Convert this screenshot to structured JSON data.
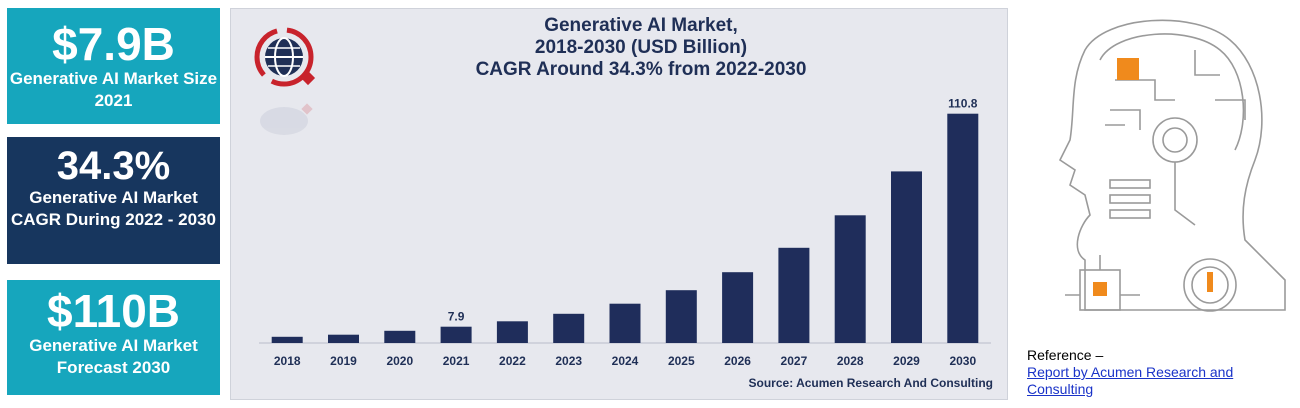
{
  "stats": [
    {
      "value": "$7.9B",
      "label": "Generative AI Market Size 2021"
    },
    {
      "value": "34.3%",
      "label": "Generative AI Market CAGR During 2022 - 2030"
    },
    {
      "value": "$110B",
      "label": "Generative AI Market Forecast 2030"
    }
  ],
  "chart_data": {
    "type": "bar",
    "title_lines": [
      "Generative AI Market,",
      "2018-2030 (USD Billion)",
      "CAGR Around 34.3% from 2022-2030"
    ],
    "categories": [
      "2018",
      "2019",
      "2020",
      "2021",
      "2022",
      "2023",
      "2024",
      "2025",
      "2026",
      "2027",
      "2028",
      "2029",
      "2030"
    ],
    "values": [
      3.0,
      4.0,
      5.9,
      7.9,
      10.5,
      14.1,
      19.0,
      25.5,
      34.2,
      46.0,
      61.7,
      82.9,
      110.8
    ],
    "data_labels": {
      "3": "7.9",
      "12": "110.8"
    },
    "bar_color": "#1f2d5b",
    "ylim": [
      0,
      115
    ],
    "grid": false,
    "source": "Source: Acumen Research And Consulting"
  },
  "reference": {
    "prefix": "Reference –",
    "link_text": "Report by Acumen Research and Consulting"
  },
  "colors": {
    "teal": "#16a6bd",
    "navy": "#17365e",
    "accent_orange": "#f08a1c"
  }
}
